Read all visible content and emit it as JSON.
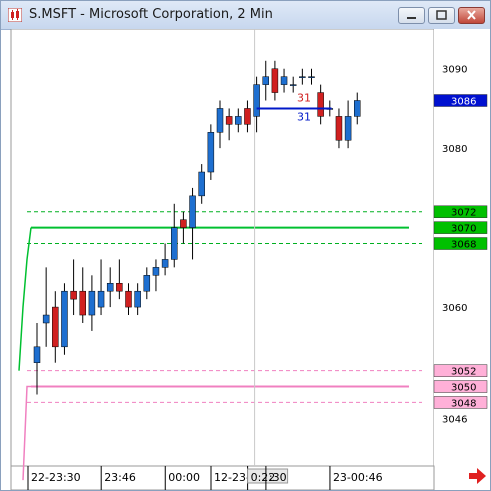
{
  "window": {
    "title": "S.MSFT - Microsoft Corporation, 2 Min",
    "icon": "candlestick-chart-app-icon",
    "buttons": [
      "minimize-icon",
      "maximize-icon",
      "close-icon"
    ]
  },
  "chart_data": {
    "type": "candlestick",
    "title": "S.MSFT - Microsoft Corporation, 2 Min",
    "ylim": [
      3040,
      3095
    ],
    "y_ticks": [
      {
        "value": 3090,
        "label": "3090"
      },
      {
        "value": 3080,
        "label": "3080"
      },
      {
        "value": 3060,
        "label": "3060"
      },
      {
        "value": 3046,
        "label": "3046"
      }
    ],
    "x_ticks": [
      {
        "index": 0,
        "label": "22-23:30"
      },
      {
        "index": 8,
        "label": "23:46"
      },
      {
        "index": 15,
        "label": "00:00"
      },
      {
        "index": 20,
        "label": "12-23-09"
      },
      {
        "index": 24,
        "label": "0:22"
      },
      {
        "index": 26,
        "label": ":30"
      },
      {
        "index": 33,
        "label": "23-00:46"
      }
    ],
    "cursor_index": 24,
    "series": [
      {
        "values": [
          {
            "o": 3053,
            "h": 3058,
            "l": 3049,
            "c": 3055
          },
          {
            "o": 3058,
            "h": 3065,
            "l": 3055,
            "c": 3059
          },
          {
            "o": 3060,
            "h": 3062,
            "l": 3053,
            "c": 3055
          },
          {
            "o": 3055,
            "h": 3063,
            "l": 3054,
            "c": 3062
          },
          {
            "o": 3062,
            "h": 3066,
            "l": 3059,
            "c": 3061
          },
          {
            "o": 3062,
            "h": 3065,
            "l": 3058,
            "c": 3059
          },
          {
            "o": 3059,
            "h": 3064,
            "l": 3057,
            "c": 3062
          },
          {
            "o": 3060,
            "h": 3066,
            "l": 3059,
            "c": 3062
          },
          {
            "o": 3062,
            "h": 3065,
            "l": 3060,
            "c": 3063
          },
          {
            "o": 3063,
            "h": 3066,
            "l": 3061,
            "c": 3062
          },
          {
            "o": 3062,
            "h": 3063,
            "l": 3059,
            "c": 3060
          },
          {
            "o": 3060,
            "h": 3063,
            "l": 3059,
            "c": 3062
          },
          {
            "o": 3062,
            "h": 3065,
            "l": 3061,
            "c": 3064
          },
          {
            "o": 3064,
            "h": 3066,
            "l": 3062,
            "c": 3065
          },
          {
            "o": 3065,
            "h": 3068,
            "l": 3064,
            "c": 3066
          },
          {
            "o": 3066,
            "h": 3073,
            "l": 3065,
            "c": 3070
          },
          {
            "o": 3071,
            "h": 3072,
            "l": 3068,
            "c": 3070
          },
          {
            "o": 3070,
            "h": 3075,
            "l": 3066,
            "c": 3074
          },
          {
            "o": 3074,
            "h": 3078,
            "l": 3073,
            "c": 3077
          },
          {
            "o": 3077,
            "h": 3083,
            "l": 3076,
            "c": 3082
          },
          {
            "o": 3082,
            "h": 3086,
            "l": 3080,
            "c": 3085
          },
          {
            "o": 3084,
            "h": 3085,
            "l": 3081,
            "c": 3083
          },
          {
            "o": 3083,
            "h": 3085,
            "l": 3082,
            "c": 3084
          },
          {
            "o": 3085,
            "h": 3086,
            "l": 3082,
            "c": 3083
          },
          {
            "o": 3084,
            "h": 3089,
            "l": 3082,
            "c": 3088
          },
          {
            "o": 3088,
            "h": 3091,
            "l": 3086,
            "c": 3089
          },
          {
            "o": 3090,
            "h": 3091,
            "l": 3086,
            "c": 3087
          },
          {
            "o": 3088,
            "h": 3090,
            "l": 3087,
            "c": 3089
          },
          {
            "o": 3088,
            "h": 3089,
            "l": 3087,
            "c": 3088
          },
          {
            "o": 3089,
            "h": 3090,
            "l": 3088,
            "c": 3089
          },
          {
            "o": 3089,
            "h": 3090,
            "l": 3088,
            "c": 3089
          },
          {
            "o": 3087,
            "h": 3088,
            "l": 3083,
            "c": 3084
          },
          {
            "o": 3085,
            "h": 3086,
            "l": 3084,
            "c": 3085
          },
          {
            "o": 3084,
            "h": 3085,
            "l": 3080,
            "c": 3081
          },
          {
            "o": 3081,
            "h": 3086,
            "l": 3080,
            "c": 3084
          },
          {
            "o": 3084,
            "h": 3087,
            "l": 3083,
            "c": 3086
          }
        ]
      }
    ],
    "level_lines": [
      {
        "value": 3072,
        "color": "#00b020",
        "style": "dashed"
      },
      {
        "value": 3070,
        "color": "#00c030",
        "style": "solid"
      },
      {
        "value": 3068,
        "color": "#00b020",
        "style": "dashed"
      },
      {
        "value": 3052,
        "color": "#f080c0",
        "style": "dashed"
      },
      {
        "value": 3050,
        "color": "#f080c0",
        "style": "solid"
      },
      {
        "value": 3048,
        "color": "#f080c0",
        "style": "dashed"
      }
    ],
    "price_tags": [
      {
        "value": 3086,
        "label": "3086",
        "bg": "#0010d0",
        "fg": "#ffffff"
      },
      {
        "value": 3072,
        "label": "3072",
        "bg": "#00c000",
        "fg": "#000000"
      },
      {
        "value": 3070,
        "label": "3070",
        "bg": "#00c000",
        "fg": "#000000"
      },
      {
        "value": 3068,
        "label": "3068",
        "bg": "#00c000",
        "fg": "#000000"
      },
      {
        "value": 3052,
        "label": "3052",
        "bg": "#ffb0d8",
        "fg": "#000000"
      },
      {
        "value": 3050,
        "label": "3050",
        "bg": "#ffb0d8",
        "fg": "#000000"
      },
      {
        "value": 3048,
        "label": "3048",
        "bg": "#ffb0d8",
        "fg": "#000000"
      }
    ],
    "marker_line": {
      "value": 3085,
      "from_index": 24,
      "to_index": 30,
      "color": "#0018c8",
      "upper_label": "31",
      "lower_label": "31"
    },
    "colors": {
      "up": "#1e6fd0",
      "down": "#d02020",
      "wick": "#000000",
      "bullish_line": "#00c030",
      "bearish_line": "#f080c0",
      "cursor": "#c8c8c8"
    }
  }
}
